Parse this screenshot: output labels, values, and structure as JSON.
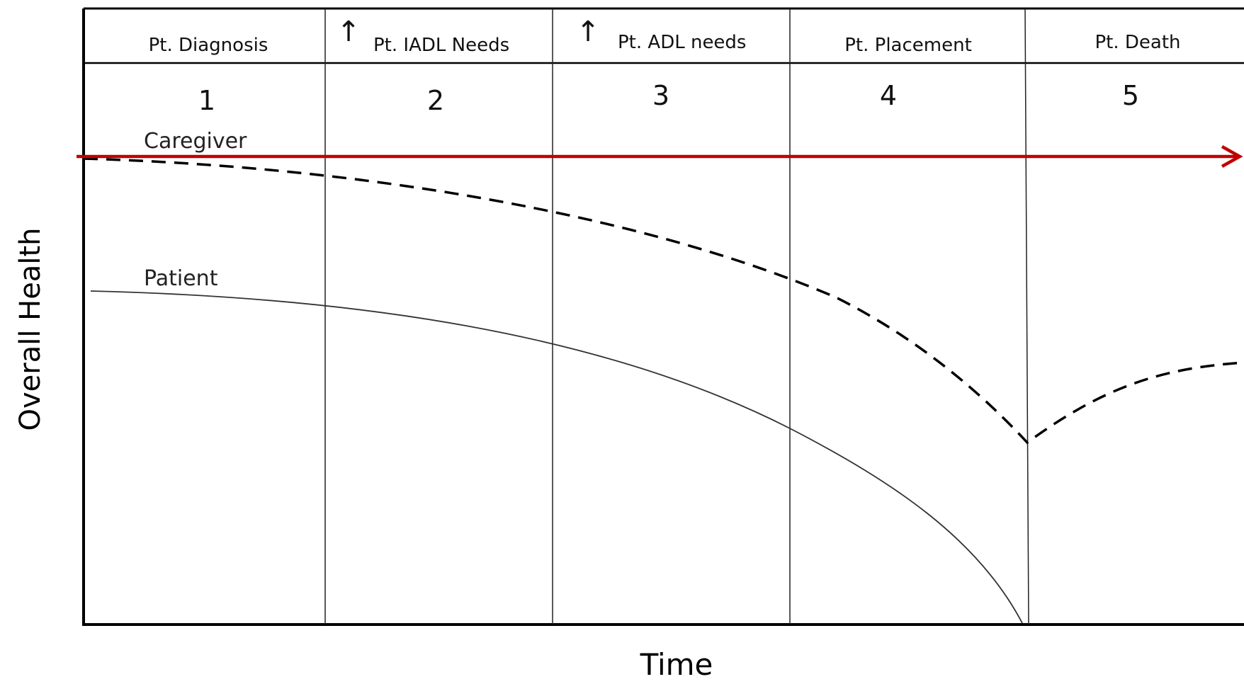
{
  "axes": {
    "ylabel": "Overall Health",
    "xlabel": "Time"
  },
  "stages": [
    {
      "number": "1",
      "header": "Pt. Diagnosis",
      "arrow": false
    },
    {
      "number": "2",
      "header": "Pt. IADL Needs",
      "arrow": true
    },
    {
      "number": "3",
      "header": "Pt. ADL needs",
      "arrow": true
    },
    {
      "number": "4",
      "header": "Pt. Placement",
      "arrow": false
    },
    {
      "number": "5",
      "header": "Pt. Death",
      "arrow": false
    }
  ],
  "curves": {
    "caregiver": {
      "label": "Caregiver",
      "style": "dashed",
      "color": "#000000"
    },
    "patient": {
      "label": "Patient",
      "style": "solid",
      "color": "#333333"
    }
  },
  "reference_arrow": {
    "color": "#c00000"
  },
  "colors": {
    "frame": "#000000",
    "background": "#ffffff"
  }
}
